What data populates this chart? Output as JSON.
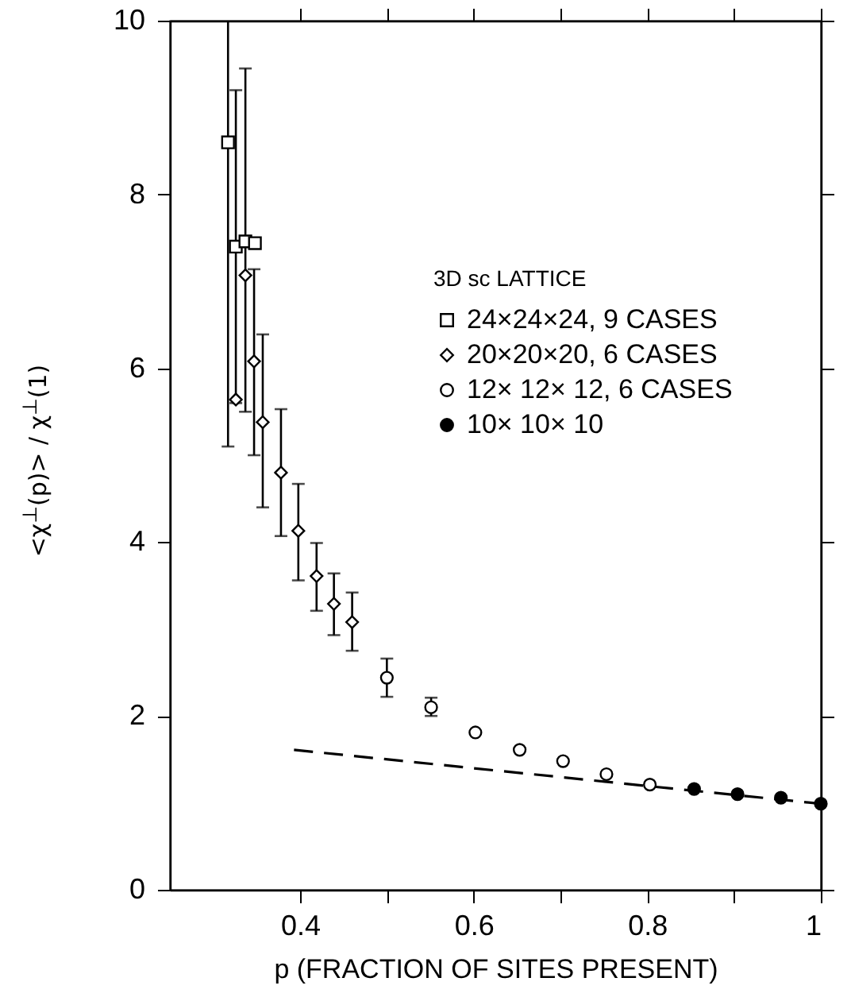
{
  "chart_data": {
    "type": "scatter",
    "xlabel": "p (FRACTION OF SITES PRESENT)",
    "ylabel": "<χ$^{⊥}$(p)> / χ$^{⊥}$(1)",
    "legend_title": "3D sc LATTICE",
    "legend": "top right",
    "xlim": [
      0.25,
      1.0
    ],
    "xticks": [
      0.4,
      {
        "value": 0.5,
        "label": null
      },
      0.6,
      {
        "value": 0.7,
        "label": null
      },
      0.8,
      {
        "value": 0.9,
        "label": null
      },
      1.0
    ],
    "ylim": [
      0,
      10
    ],
    "yticks": [
      0,
      2,
      4,
      6,
      8,
      10
    ],
    "grid": false,
    "series": [
      {
        "name": "24×24×24, 9 CASES",
        "color": "#ffffff",
        "marker": "square",
        "x": [
          0.317,
          0.326,
          0.337,
          0.348
        ],
        "values": [
          8.6,
          7.4,
          7.46,
          7.44
        ],
        "errors": [
          [
            5.1,
            10
          ],
          [
            5.6,
            9.2
          ],
          [
            5.5,
            9.45
          ],
          null
        ]
      },
      {
        "name": "20×20×20, 6 CASES",
        "color": "#ffffff",
        "marker": "diamond",
        "x": [
          0.326,
          0.337,
          0.347,
          0.357,
          0.378,
          0.398,
          0.419,
          0.439,
          0.46
        ],
        "values": [
          5.64,
          7.07,
          6.08,
          5.38,
          4.8,
          4.13,
          3.61,
          3.29,
          3.08
        ],
        "errors": [
          null,
          null,
          [
            5.0,
            7.14
          ],
          [
            4.4,
            6.39
          ],
          [
            4.07,
            5.53
          ],
          [
            3.56,
            4.67
          ],
          [
            3.21,
            3.99
          ],
          [
            2.93,
            3.64
          ],
          [
            2.75,
            3.42
          ]
        ]
      },
      {
        "name": "12× 12× 12, 6 CASES",
        "color": "#ffffff",
        "marker": "circle",
        "x": [
          0.5,
          0.551,
          0.602,
          0.653,
          0.703,
          0.753,
          0.803
        ],
        "values": [
          2.44,
          2.1,
          1.81,
          1.61,
          1.48,
          1.33,
          1.21
        ],
        "errors": [
          [
            2.22,
            2.66
          ],
          [
            2.0,
            2.21
          ],
          null,
          null,
          null,
          null,
          null
        ]
      },
      {
        "name": "10× 10× 10",
        "color": "#000000",
        "marker": "circle",
        "x": [
          0.854,
          0.904,
          0.954,
          1.0
        ],
        "values": [
          1.16,
          1.1,
          1.06,
          0.99
        ]
      },
      {
        "type": "line",
        "color": "#000000",
        "line_style": "dashed",
        "marker": "none",
        "x": [
          0.393,
          1.0
        ],
        "values": [
          1.61,
          0.99
        ]
      }
    ]
  }
}
